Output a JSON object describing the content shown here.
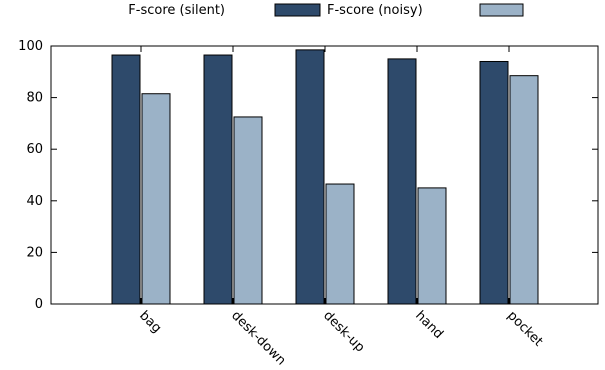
{
  "chart_data": {
    "type": "bar",
    "title": "",
    "xlabel": "",
    "ylabel": "",
    "ylim": [
      0,
      100
    ],
    "yticks": [
      0,
      20,
      40,
      60,
      80,
      100
    ],
    "grid": false,
    "legend_position": "top",
    "categories": [
      "bag",
      "desk-down",
      "desk-up",
      "hand",
      "pocket"
    ],
    "legend": [
      "F-score (silent)",
      "F-score (noisy)",
      ""
    ],
    "series": [
      {
        "name": "F-score (silent)",
        "color": "#2e4a6b",
        "values": [
          96.5,
          96.5,
          98.5,
          95,
          94
        ]
      },
      {
        "name": "F-score (noisy)",
        "color": "#9bb2c7",
        "values": [
          81.5,
          72.5,
          46.5,
          45,
          88.5
        ]
      }
    ]
  }
}
